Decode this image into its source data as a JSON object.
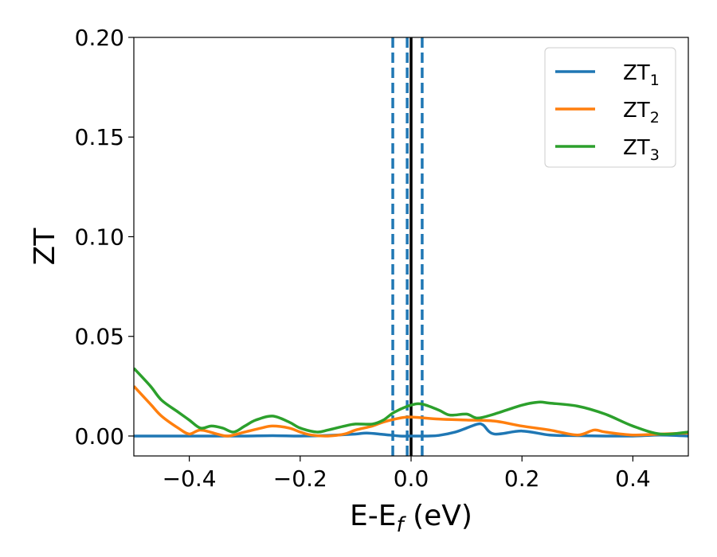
{
  "chart_data": {
    "type": "line",
    "xlabel": "E-E",
    "xlabel_sub": "f",
    "xlabel_unit": " (eV)",
    "ylabel": "ZT",
    "xlim": [
      -0.5,
      0.5
    ],
    "ylim": [
      -0.01,
      0.2
    ],
    "xticks": [
      -0.4,
      -0.2,
      0.0,
      0.2,
      0.4
    ],
    "xtick_labels": [
      "−0.4",
      "−0.2",
      "0.0",
      "0.2",
      "0.4"
    ],
    "yticks": [
      0.0,
      0.05,
      0.1,
      0.15,
      0.2
    ],
    "ytick_labels": [
      "0.00",
      "0.05",
      "0.10",
      "0.15",
      "0.20"
    ],
    "grid": false,
    "legend_position": "top-right",
    "series": [
      {
        "name": "ZT",
        "name_sub": "1",
        "color": "#1f77b4",
        "x": [
          -0.5,
          -0.45,
          -0.4,
          -0.35,
          -0.3,
          -0.25,
          -0.2,
          -0.15,
          -0.1,
          -0.08,
          -0.05,
          -0.02,
          0.0,
          0.03,
          0.05,
          0.08,
          0.1,
          0.12,
          0.13,
          0.15,
          0.2,
          0.25,
          0.3,
          0.35,
          0.4,
          0.45,
          0.5
        ],
        "y": [
          0.0,
          0.0,
          0.0,
          0.0,
          0.0,
          0.0002,
          0.0,
          0.0003,
          0.001,
          0.0015,
          0.0008,
          0.0,
          0.0,
          0.0,
          0.0003,
          0.002,
          0.004,
          0.006,
          0.0055,
          0.001,
          0.0025,
          0.0005,
          0.0002,
          0.0,
          0.0,
          0.0005,
          0.0
        ]
      },
      {
        "name": "ZT",
        "name_sub": "2",
        "color": "#ff7f0e",
        "x": [
          -0.5,
          -0.47,
          -0.45,
          -0.42,
          -0.4,
          -0.38,
          -0.35,
          -0.33,
          -0.3,
          -0.27,
          -0.25,
          -0.22,
          -0.2,
          -0.18,
          -0.15,
          -0.12,
          -0.1,
          -0.07,
          -0.05,
          -0.02,
          0.0,
          0.05,
          0.1,
          0.15,
          0.2,
          0.25,
          0.3,
          0.33,
          0.35,
          0.4,
          0.45,
          0.5
        ],
        "y": [
          0.025,
          0.016,
          0.01,
          0.004,
          0.001,
          0.003,
          0.001,
          0.0,
          0.002,
          0.004,
          0.005,
          0.004,
          0.002,
          0.0005,
          0.0,
          0.001,
          0.003,
          0.005,
          0.007,
          0.009,
          0.0095,
          0.0085,
          0.008,
          0.0075,
          0.005,
          0.003,
          0.0005,
          0.003,
          0.002,
          0.0005,
          0.001,
          0.0015
        ]
      },
      {
        "name": "ZT",
        "name_sub": "3",
        "color": "#2ca02c",
        "x": [
          -0.5,
          -0.47,
          -0.45,
          -0.42,
          -0.4,
          -0.38,
          -0.36,
          -0.34,
          -0.32,
          -0.3,
          -0.28,
          -0.25,
          -0.22,
          -0.2,
          -0.17,
          -0.15,
          -0.12,
          -0.1,
          -0.07,
          -0.05,
          -0.03,
          0.0,
          0.02,
          0.05,
          0.07,
          0.1,
          0.12,
          0.15,
          0.2,
          0.23,
          0.25,
          0.3,
          0.35,
          0.4,
          0.45,
          0.5
        ],
        "y": [
          0.034,
          0.025,
          0.018,
          0.012,
          0.008,
          0.004,
          0.005,
          0.004,
          0.002,
          0.005,
          0.008,
          0.01,
          0.007,
          0.004,
          0.002,
          0.003,
          0.005,
          0.006,
          0.006,
          0.008,
          0.012,
          0.0155,
          0.016,
          0.013,
          0.0105,
          0.011,
          0.009,
          0.011,
          0.0155,
          0.017,
          0.0165,
          0.015,
          0.011,
          0.005,
          0.001,
          0.002
        ]
      }
    ],
    "vlines": [
      {
        "x": -0.033,
        "style": "dashed",
        "color": "#1f77b4"
      },
      {
        "x": -0.007,
        "style": "dashed",
        "color": "#1f77b4"
      },
      {
        "x": 0.0,
        "style": "solid",
        "color": "#000000"
      },
      {
        "x": 0.02,
        "style": "dashed",
        "color": "#1f77b4"
      }
    ]
  }
}
